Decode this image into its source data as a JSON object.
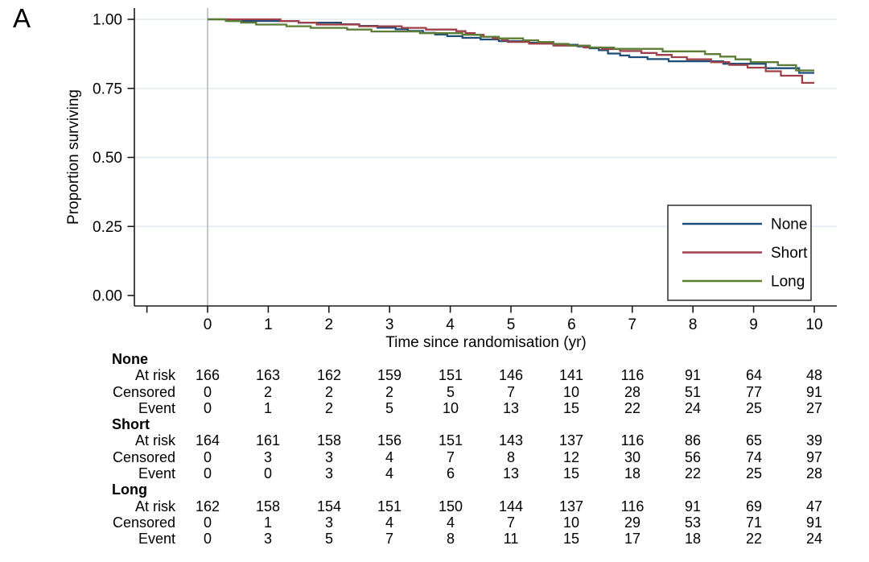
{
  "panel_label": "A",
  "colors": {
    "none_blue": "#1e4e77",
    "short_red": "#9e3f49",
    "long_green": "#5b7c34",
    "grid": "#e3edf3",
    "reference_line": "#ababab",
    "axis": "#1a1a1a",
    "legend_border": "#2b2b2b",
    "background": "#ffffff",
    "text": "#000000"
  },
  "chart_data": {
    "type": "line",
    "subtype": "kaplan-meier-step-curves",
    "title": "",
    "xlabel": "Time since randomisation (yr)",
    "ylabel": "Proportion surviving",
    "xlim": [
      -1.2,
      10.35
    ],
    "ylim": [
      0,
      1.04
    ],
    "xticks": {
      "values": [
        -1,
        0,
        1,
        2,
        3,
        4,
        5,
        6,
        7,
        8,
        9,
        10
      ],
      "labels": [
        "",
        "0",
        "1",
        "2",
        "3",
        "4",
        "5",
        "6",
        "7",
        "8",
        "9",
        "10"
      ]
    },
    "yticks": {
      "values": [
        0,
        0.25,
        0.5,
        0.75,
        1
      ],
      "labels": [
        "0.00",
        "0.25",
        "0.50",
        "0.75",
        "1.00"
      ]
    },
    "grid": "horizontal gridlines at y ticks",
    "reference_line_x": 0,
    "legend": {
      "position": "inside bottom-right",
      "entries": [
        "None",
        "Short",
        "Long"
      ]
    },
    "series": [
      {
        "name": "None",
        "color": "#1e4e77",
        "steps": [
          [
            0,
            1
          ],
          [
            0.35,
            0.994
          ],
          [
            1.5,
            0.988
          ],
          [
            2.2,
            0.982
          ],
          [
            2.5,
            0.976
          ],
          [
            2.8,
            0.97
          ],
          [
            3.1,
            0.964
          ],
          [
            3.3,
            0.958
          ],
          [
            3.55,
            0.951
          ],
          [
            3.75,
            0.945
          ],
          [
            3.95,
            0.939
          ],
          [
            4.2,
            0.933
          ],
          [
            4.5,
            0.927
          ],
          [
            4.8,
            0.921
          ],
          [
            5.3,
            0.915
          ],
          [
            5.7,
            0.908
          ],
          [
            6.1,
            0.902
          ],
          [
            6.3,
            0.895
          ],
          [
            6.45,
            0.888
          ],
          [
            6.6,
            0.876
          ],
          [
            6.8,
            0.869
          ],
          [
            6.95,
            0.863
          ],
          [
            7.25,
            0.856
          ],
          [
            7.6,
            0.848
          ],
          [
            8.5,
            0.839
          ],
          [
            9.2,
            0.823
          ],
          [
            9.75,
            0.806
          ],
          [
            10,
            0.806
          ]
        ]
      },
      {
        "name": "Short",
        "color": "#9e3f49",
        "steps": [
          [
            0,
            1
          ],
          [
            1.2,
            0.994
          ],
          [
            1.5,
            0.988
          ],
          [
            1.8,
            0.981
          ],
          [
            2.5,
            0.975
          ],
          [
            3.2,
            0.969
          ],
          [
            3.6,
            0.963
          ],
          [
            4.1,
            0.957
          ],
          [
            4.25,
            0.95
          ],
          [
            4.4,
            0.944
          ],
          [
            4.55,
            0.937
          ],
          [
            4.7,
            0.931
          ],
          [
            4.85,
            0.924
          ],
          [
            4.95,
            0.918
          ],
          [
            5.3,
            0.912
          ],
          [
            5.7,
            0.905
          ],
          [
            6.2,
            0.898
          ],
          [
            6.5,
            0.892
          ],
          [
            6.8,
            0.885
          ],
          [
            7.15,
            0.878
          ],
          [
            7.4,
            0.871
          ],
          [
            7.65,
            0.863
          ],
          [
            7.9,
            0.855
          ],
          [
            8.3,
            0.845
          ],
          [
            8.6,
            0.835
          ],
          [
            8.9,
            0.825
          ],
          [
            9.2,
            0.812
          ],
          [
            9.45,
            0.796
          ],
          [
            9.8,
            0.77
          ],
          [
            10,
            0.77
          ]
        ]
      },
      {
        "name": "Long",
        "color": "#5b7c34",
        "steps": [
          [
            0,
            1
          ],
          [
            0.3,
            0.994
          ],
          [
            0.55,
            0.988
          ],
          [
            0.8,
            0.981
          ],
          [
            1.3,
            0.975
          ],
          [
            1.7,
            0.969
          ],
          [
            2.3,
            0.963
          ],
          [
            2.7,
            0.956
          ],
          [
            3.5,
            0.95
          ],
          [
            4.2,
            0.944
          ],
          [
            4.5,
            0.937
          ],
          [
            4.8,
            0.931
          ],
          [
            5.2,
            0.924
          ],
          [
            5.45,
            0.918
          ],
          [
            5.7,
            0.911
          ],
          [
            5.95,
            0.905
          ],
          [
            6.3,
            0.898
          ],
          [
            6.7,
            0.893
          ],
          [
            7.5,
            0.884
          ],
          [
            8.2,
            0.874
          ],
          [
            8.45,
            0.865
          ],
          [
            8.7,
            0.855
          ],
          [
            8.95,
            0.845
          ],
          [
            9.4,
            0.834
          ],
          [
            9.7,
            0.815
          ],
          [
            10,
            0.815
          ]
        ]
      }
    ]
  },
  "risk_table": {
    "times": [
      0,
      1,
      2,
      3,
      4,
      5,
      6,
      7,
      8,
      9,
      10
    ],
    "row_labels": [
      "At risk",
      "Censored",
      "Event"
    ],
    "groups": [
      {
        "name": "None",
        "at_risk": [
          166,
          163,
          162,
          159,
          151,
          146,
          141,
          116,
          91,
          64,
          48
        ],
        "censored": [
          0,
          2,
          2,
          2,
          5,
          7,
          10,
          28,
          51,
          77,
          91
        ],
        "event": [
          0,
          1,
          2,
          5,
          10,
          13,
          15,
          22,
          24,
          25,
          27
        ]
      },
      {
        "name": "Short",
        "at_risk": [
          164,
          161,
          158,
          156,
          151,
          143,
          137,
          116,
          86,
          65,
          39
        ],
        "censored": [
          0,
          3,
          3,
          4,
          7,
          8,
          12,
          30,
          56,
          74,
          97
        ],
        "event": [
          0,
          0,
          3,
          4,
          6,
          13,
          15,
          18,
          22,
          25,
          28
        ]
      },
      {
        "name": "Long",
        "at_risk": [
          162,
          158,
          154,
          151,
          150,
          144,
          137,
          116,
          91,
          69,
          47
        ],
        "censored": [
          0,
          1,
          3,
          4,
          4,
          7,
          10,
          29,
          53,
          71,
          91
        ],
        "event": [
          0,
          3,
          5,
          7,
          8,
          11,
          15,
          17,
          18,
          22,
          24
        ]
      }
    ]
  }
}
